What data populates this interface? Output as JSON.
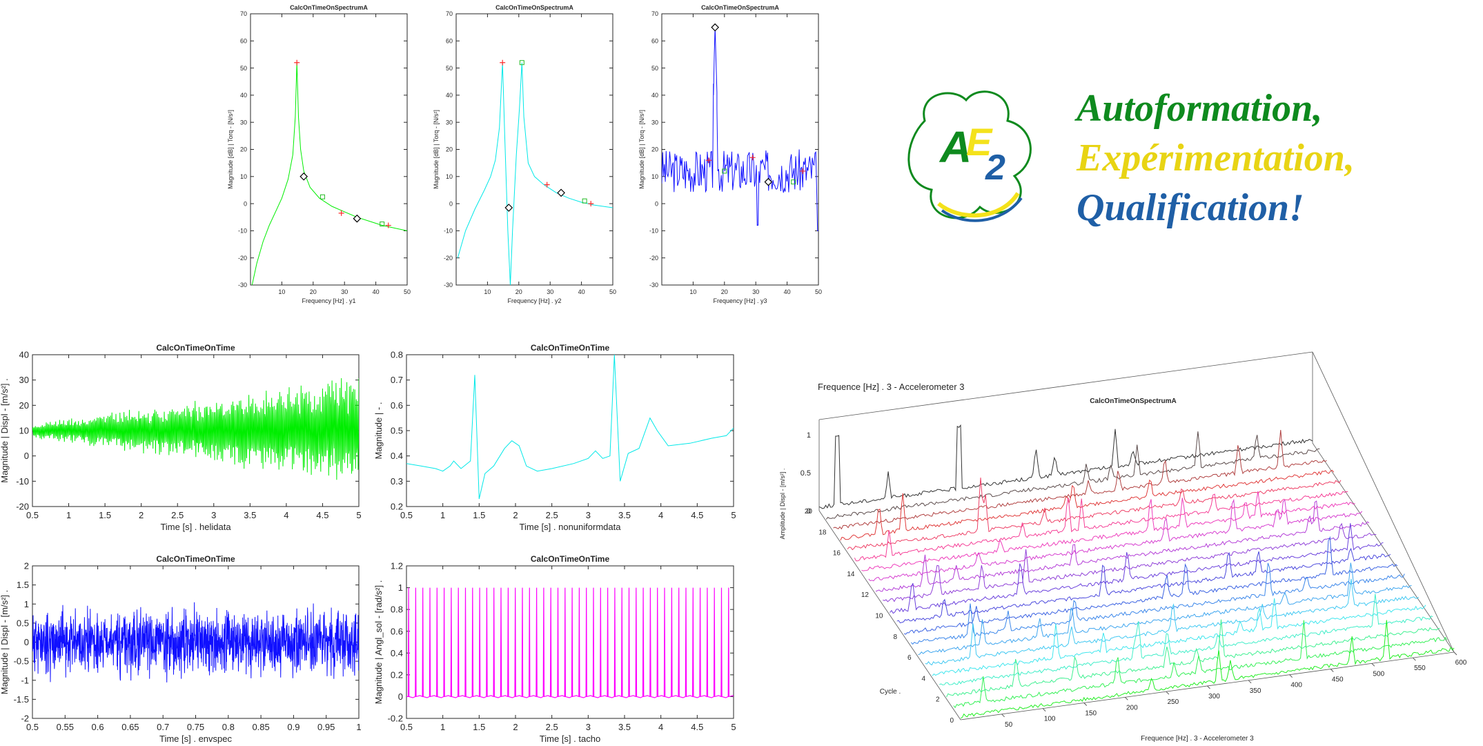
{
  "colors": {
    "green": "#00ee00",
    "cyan": "#00e8e8",
    "blue": "#1010ff",
    "magenta": "#ff00ff",
    "axis": "#262626",
    "marker_red": "#ff2a2a",
    "marker_green": "#22bb22",
    "logo_green": "#0e8a1e",
    "logo_yellow": "#f4e21b",
    "logo_blue": "#1f5fa6"
  },
  "logo": {
    "line1": "Autoformation,",
    "line2": "Expérimentation,",
    "line3": "Qualification!",
    "mark": "AE2"
  },
  "chart_data": [
    {
      "id": "top1",
      "type": "line",
      "title": "CalcOnTimeOnSpectrumA",
      "xlabel": "Frequency [Hz] . y1",
      "ylabel": "Magnitude [dB] | Torq - [N/s²]",
      "xlim": [
        0,
        50
      ],
      "ylim": [
        -30,
        70
      ],
      "xticks": [
        "10",
        "20",
        "30",
        "40",
        "50"
      ],
      "yticks": [
        "-30",
        "-20",
        "-10",
        "0",
        "10",
        "20",
        "30",
        "40",
        "50",
        "60",
        "70"
      ],
      "color": "green",
      "series": [
        {
          "values": [
            [
              0.5,
              -30
            ],
            [
              2,
              -22
            ],
            [
              4,
              -14
            ],
            [
              6,
              -8
            ],
            [
              8,
              -3
            ],
            [
              10,
              2
            ],
            [
              12,
              9
            ],
            [
              13.5,
              18
            ],
            [
              14.3,
              32
            ],
            [
              14.8,
              52
            ],
            [
              15.3,
              32
            ],
            [
              16,
              20
            ],
            [
              17,
              12
            ],
            [
              19,
              6
            ],
            [
              22,
              2
            ],
            [
              26,
              -1
            ],
            [
              30,
              -3
            ],
            [
              34,
              -5
            ],
            [
              38,
              -6.5
            ],
            [
              42,
              -8
            ],
            [
              46,
              -9
            ],
            [
              50,
              -10
            ]
          ]
        }
      ],
      "markers": {
        "red_plus": [
          [
            14.8,
            52
          ],
          [
            29,
            -3.5
          ],
          [
            44,
            -8
          ]
        ],
        "black_diamond": [
          [
            17,
            10
          ],
          [
            34,
            -5.5
          ]
        ],
        "green_square": [
          [
            23,
            2.5
          ],
          [
            42,
            -7.5
          ]
        ]
      }
    },
    {
      "id": "top2",
      "type": "line",
      "title": "CalcOnTimeOnSpectrumA",
      "xlabel": "Frequency [Hz] . y2",
      "ylabel": "Magnitude [dB] | Torq - [N/s²]",
      "xlim": [
        0,
        50
      ],
      "ylim": [
        -30,
        70
      ],
      "xticks": [
        "10",
        "20",
        "30",
        "40",
        "50"
      ],
      "yticks": [
        "-30",
        "-20",
        "-10",
        "0",
        "10",
        "20",
        "30",
        "40",
        "50",
        "60",
        "70"
      ],
      "color": "cyan",
      "series": [
        {
          "values": [
            [
              0.5,
              -20
            ],
            [
              3,
              -10
            ],
            [
              6,
              -2
            ],
            [
              9,
              5
            ],
            [
              11,
              10
            ],
            [
              12.5,
              16
            ],
            [
              13.8,
              28
            ],
            [
              14.8,
              52
            ],
            [
              15.5,
              25
            ],
            [
              16.5,
              -10
            ],
            [
              17.3,
              -30
            ],
            [
              18,
              -10
            ],
            [
              19.2,
              18
            ],
            [
              20.2,
              35
            ],
            [
              21,
              52
            ],
            [
              21.6,
              32
            ],
            [
              23,
              15
            ],
            [
              25,
              10
            ],
            [
              28,
              7
            ],
            [
              32,
              4
            ],
            [
              36,
              2
            ],
            [
              40,
              0.5
            ],
            [
              44,
              -0.5
            ],
            [
              50,
              -1.5
            ]
          ]
        }
      ],
      "markers": {
        "red_plus": [
          [
            14.8,
            52
          ],
          [
            29,
            7
          ],
          [
            43,
            0
          ]
        ],
        "black_diamond": [
          [
            16.8,
            -1.5
          ],
          [
            33.5,
            4
          ]
        ],
        "green_square": [
          [
            21,
            52
          ],
          [
            41,
            1
          ]
        ]
      }
    },
    {
      "id": "top3",
      "type": "line",
      "title": "CalcOnTimeOnSpectrumA",
      "xlabel": "Frequency [Hz] . y3",
      "ylabel": "Magnitude [dB] | Torq - [N/s²]",
      "xlim": [
        0,
        50
      ],
      "ylim": [
        -30,
        70
      ],
      "xticks": [
        "10",
        "20",
        "30",
        "40",
        "50"
      ],
      "yticks": [
        "-30",
        "-20",
        "-10",
        "0",
        "10",
        "20",
        "30",
        "40",
        "50",
        "60",
        "70"
      ],
      "color": "blue",
      "noise": {
        "base": 12,
        "amp": 8,
        "n": 180,
        "seed": 3
      },
      "series": [
        {
          "values": [
            [
              16.5,
              40
            ],
            [
              17,
              65
            ],
            [
              17.6,
              35
            ]
          ]
        }
      ],
      "markers": {
        "red_plus": [
          [
            15,
            16
          ],
          [
            29,
            17
          ],
          [
            45,
            12
          ]
        ],
        "black_diamond": [
          [
            17,
            65
          ],
          [
            34,
            8
          ]
        ],
        "green_square": [
          [
            20,
            12
          ],
          [
            42,
            8
          ]
        ]
      }
    },
    {
      "id": "mid1",
      "type": "line",
      "title": "CalcOnTimeOnTime",
      "xlabel": "Time [s] . helidata",
      "ylabel": "Magnitude | Displ - [m/s²] .",
      "xlim": [
        0.5,
        5
      ],
      "ylim": [
        -20,
        40
      ],
      "xticks": [
        "0.5",
        "1",
        "1.5",
        "2",
        "2.5",
        "3",
        "3.5",
        "4",
        "4.5",
        "5"
      ],
      "yticks": [
        "-20",
        "-10",
        "0",
        "10",
        "20",
        "30",
        "40"
      ],
      "color": "green",
      "signal": {
        "kind": "growing",
        "base": 10,
        "amp_start": 3,
        "amp_end": 22,
        "n": 900,
        "seed": 7
      }
    },
    {
      "id": "mid2",
      "type": "line",
      "title": "CalcOnTimeOnTime",
      "xlabel": "Time [s] . nonuniformdata",
      "ylabel": "Magnitude | - .",
      "xlim": [
        0.5,
        5
      ],
      "ylim": [
        0.2,
        0.8
      ],
      "xticks": [
        "0.5",
        "1",
        "1.5",
        "2",
        "2.5",
        "3",
        "3.5",
        "4",
        "4.5",
        "5"
      ],
      "yticks": [
        "0.2",
        "0.3",
        "0.4",
        "0.5",
        "0.6",
        "0.7",
        "0.8"
      ],
      "color": "cyan",
      "series": [
        {
          "values": [
            [
              0.5,
              0.37
            ],
            [
              0.7,
              0.36
            ],
            [
              0.9,
              0.35
            ],
            [
              1.0,
              0.34
            ],
            [
              1.1,
              0.36
            ],
            [
              1.15,
              0.38
            ],
            [
              1.25,
              0.35
            ],
            [
              1.38,
              0.38
            ],
            [
              1.44,
              0.72
            ],
            [
              1.5,
              0.23
            ],
            [
              1.58,
              0.33
            ],
            [
              1.7,
              0.36
            ],
            [
              1.85,
              0.43
            ],
            [
              1.95,
              0.46
            ],
            [
              2.05,
              0.44
            ],
            [
              2.15,
              0.36
            ],
            [
              2.3,
              0.34
            ],
            [
              2.5,
              0.35
            ],
            [
              2.8,
              0.37
            ],
            [
              3.0,
              0.39
            ],
            [
              3.1,
              0.42
            ],
            [
              3.2,
              0.39
            ],
            [
              3.3,
              0.4
            ],
            [
              3.36,
              0.8
            ],
            [
              3.44,
              0.3
            ],
            [
              3.55,
              0.41
            ],
            [
              3.7,
              0.43
            ],
            [
              3.85,
              0.55
            ],
            [
              3.95,
              0.5
            ],
            [
              4.1,
              0.44
            ],
            [
              4.4,
              0.45
            ],
            [
              4.7,
              0.47
            ],
            [
              4.9,
              0.48
            ],
            [
              5.0,
              0.51
            ]
          ]
        }
      ]
    },
    {
      "id": "bot1",
      "type": "line",
      "title": "CalcOnTimeOnTime",
      "xlabel": "Time [s] . envspec",
      "ylabel": "Magnitude | Displ - [m/s²] .",
      "xlim": [
        0.5,
        1
      ],
      "ylim": [
        -2,
        2
      ],
      "xticks": [
        "0.5",
        "0.55",
        "0.6",
        "0.65",
        "0.7",
        "0.75",
        "0.8",
        "0.85",
        "0.9",
        "0.95",
        "1"
      ],
      "yticks": [
        "-2",
        "-1.5",
        "-1",
        "-0.5",
        "0",
        "0.5",
        "1",
        "1.5",
        "2"
      ],
      "color": "blue",
      "signal": {
        "kind": "noise",
        "base": 0,
        "amp_start": 0.7,
        "amp_end": 0.7,
        "n": 1400,
        "seed": 11
      }
    },
    {
      "id": "bot2",
      "type": "line",
      "title": "CalcOnTimeOnTime",
      "xlabel": "Time [s] . tacho",
      "ylabel": "Magnitude | Angl_sol - [rad/s²] .",
      "xlim": [
        0.5,
        5
      ],
      "ylim": [
        -0.2,
        1.2
      ],
      "xticks": [
        "0.5",
        "1",
        "1.5",
        "2",
        "2.5",
        "3",
        "3.5",
        "4",
        "4.5",
        "5"
      ],
      "yticks": [
        "-0.2",
        "0",
        "0.2",
        "0.4",
        "0.6",
        "0.8",
        "1",
        "1.2"
      ],
      "color": "magenta",
      "pulses": {
        "count": 46,
        "high": 1,
        "low": 0
      }
    },
    {
      "id": "waterfall",
      "type": "waterfall",
      "title": "CalcOnTimeOnSpectrumA",
      "header": "Frequence [Hz] . 3 - Accelerometer 3",
      "xlabel": "Frequence [Hz] . 3 - Accelerometer 3",
      "ylabel": "Cycle .",
      "zlabel": "Amplitude | Displ - [m/s²] .",
      "xticks": [
        "50",
        "100",
        "150",
        "200",
        "250",
        "300",
        "350",
        "400",
        "450",
        "500",
        "550",
        "600"
      ],
      "yticks": [
        "0",
        "2",
        "4",
        "6",
        "8",
        "10",
        "12",
        "14",
        "16",
        "18",
        "20"
      ],
      "zticks": [
        "0",
        "0.5",
        "1"
      ],
      "cycles": 20,
      "cycle_colors": [
        "#22ee22",
        "#33f055",
        "#3ef090",
        "#40eec8",
        "#40e6ee",
        "#40c8f2",
        "#3fa6ef",
        "#3a86ea",
        "#3a62e2",
        "#4a48dd",
        "#6a40dc",
        "#9040d8",
        "#b43ed8",
        "#d63ed0",
        "#ee3ebc",
        "#f53e96",
        "#ee4066",
        "#e03a3a",
        "#b04040",
        "#5a4a4a",
        "#333333"
      ]
    }
  ]
}
